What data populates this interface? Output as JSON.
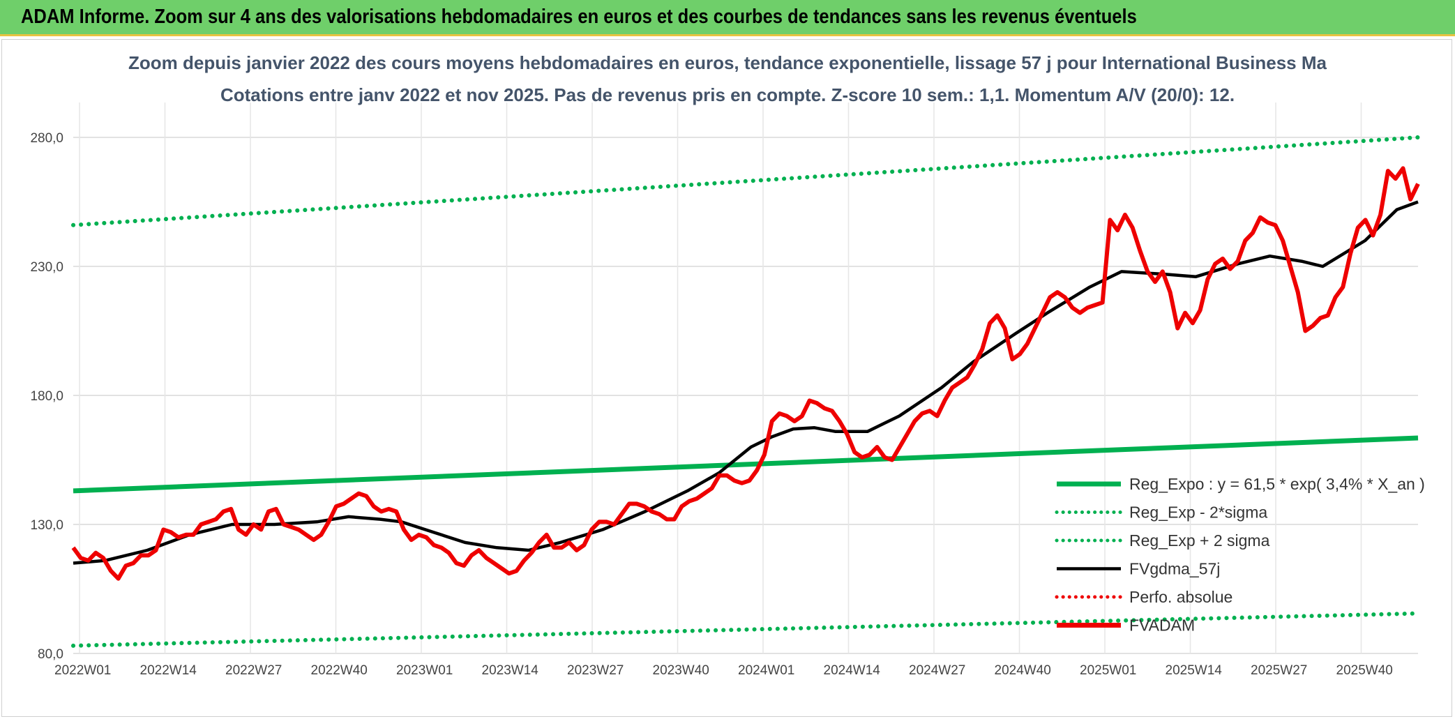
{
  "banner": {
    "title": "ADAM Informe. Zoom sur 4 ans des valorisations hebdomadaires en euros et des courbes de tendances sans les revenus éventuels"
  },
  "colors": {
    "banner": "#6fcf6a",
    "regline": "#00b050",
    "sigma": "#00b050",
    "mma": "#000000",
    "price": "#ee0000",
    "perfo": "#ee0000",
    "grid": "#d9d9d9"
  },
  "chart_data": {
    "type": "line",
    "title": "Zoom depuis janvier 2022 des cours moyens hebdomadaires en euros, tendance exponentielle, lissage 57 j pour International Business Ma",
    "subtitle": "Cotations entre janv 2022 et nov 2025. Pas de revenus pris en compte. Z-score 10 sem.: 1,1. Momentum A/V (20/0): 12.",
    "ylim": [
      80,
      280
    ],
    "yticks": [
      "80,0",
      "130,0",
      "180,0",
      "230,0",
      "280,0"
    ],
    "yticks_values": [
      80,
      130,
      180,
      230,
      280
    ],
    "xticks": [
      "2022W01",
      "2022W14",
      "2022W27",
      "2022W40",
      "2023W01",
      "2023W14",
      "2023W27",
      "2023W40",
      "2024W01",
      "2024W14",
      "2024W27",
      "2024W40",
      "2025W01",
      "2025W14",
      "2025W27",
      "2025W40"
    ],
    "x_weeks_total": 206,
    "legend": [
      {
        "key": "regline",
        "label": "Reg_Expo : y = 61,5 * exp( 3,4% *  X_an )",
        "style": "solid-thick",
        "color": "#00b050"
      },
      {
        "key": "lower",
        "label": "Reg_Exp - 2*sigma",
        "style": "dotted",
        "color": "#00b050"
      },
      {
        "key": "upper",
        "label": "Reg_Exp + 2 sigma",
        "style": "dotted",
        "color": "#00b050"
      },
      {
        "key": "mma",
        "label": "FVgdma_57j",
        "style": "solid",
        "color": "#000000"
      },
      {
        "key": "perfo",
        "label": "Perfo. absolue",
        "style": "dotted",
        "color": "#ee0000"
      },
      {
        "key": "price",
        "label": "FVADAM",
        "style": "solid-thick",
        "color": "#ee0000"
      }
    ],
    "series": [
      {
        "name": "Reg_Expo",
        "points": [
          [
            0,
            143.0
          ],
          [
            206,
            163.5
          ]
        ]
      },
      {
        "name": "Reg_Exp - 2*sigma",
        "points": [
          [
            0,
            83.0
          ],
          [
            206,
            95.5
          ]
        ]
      },
      {
        "name": "Reg_Exp + 2 sigma",
        "points": [
          [
            0,
            246.0
          ],
          [
            206,
            280.0
          ]
        ]
      },
      {
        "name": "FVgdma_57j",
        "points": [
          [
            0,
            115
          ],
          [
            6,
            116
          ],
          [
            14,
            120
          ],
          [
            22,
            126
          ],
          [
            30,
            130
          ],
          [
            38,
            130
          ],
          [
            46,
            131
          ],
          [
            52,
            133
          ],
          [
            58,
            132
          ],
          [
            62,
            131
          ],
          [
            68,
            127
          ],
          [
            74,
            123
          ],
          [
            80,
            121
          ],
          [
            86,
            120
          ],
          [
            92,
            123
          ],
          [
            100,
            128
          ],
          [
            108,
            135
          ],
          [
            116,
            143
          ],
          [
            122,
            150
          ],
          [
            128,
            160
          ],
          [
            132,
            164
          ],
          [
            136,
            167
          ],
          [
            140,
            167.5
          ],
          [
            144,
            166
          ],
          [
            150,
            166
          ],
          [
            156,
            172
          ],
          [
            164,
            183
          ],
          [
            170,
            193
          ],
          [
            178,
            204
          ],
          [
            184,
            212
          ],
          [
            192,
            222
          ],
          [
            198,
            228
          ],
          [
            206,
            227
          ],
          [
            212,
            226
          ],
          [
            220,
            231
          ],
          [
            226,
            234
          ],
          [
            232,
            232
          ],
          [
            236,
            230
          ],
          [
            244,
            240
          ],
          [
            250,
            252
          ],
          [
            254,
            255
          ]
        ]
      },
      {
        "name": "FVADAM",
        "points": [
          [
            0,
            121
          ],
          [
            2,
            117
          ],
          [
            4,
            116
          ],
          [
            6,
            119
          ],
          [
            8,
            117
          ],
          [
            10,
            112
          ],
          [
            12,
            109
          ],
          [
            14,
            114
          ],
          [
            16,
            115
          ],
          [
            18,
            118
          ],
          [
            20,
            118
          ],
          [
            22,
            120
          ],
          [
            24,
            128
          ],
          [
            26,
            127
          ],
          [
            28,
            125
          ],
          [
            30,
            126
          ],
          [
            32,
            126
          ],
          [
            34,
            130
          ],
          [
            36,
            131
          ],
          [
            38,
            132
          ],
          [
            40,
            135
          ],
          [
            42,
            136
          ],
          [
            44,
            128
          ],
          [
            46,
            126
          ],
          [
            48,
            130
          ],
          [
            50,
            128
          ],
          [
            52,
            135
          ],
          [
            54,
            136
          ],
          [
            56,
            130
          ],
          [
            58,
            129
          ],
          [
            60,
            128
          ],
          [
            62,
            126
          ],
          [
            64,
            124
          ],
          [
            66,
            126
          ],
          [
            68,
            131
          ],
          [
            70,
            137
          ],
          [
            72,
            138
          ],
          [
            74,
            140
          ],
          [
            76,
            142
          ],
          [
            78,
            141
          ],
          [
            80,
            137
          ],
          [
            82,
            135
          ],
          [
            84,
            136
          ],
          [
            86,
            135
          ],
          [
            88,
            128
          ],
          [
            90,
            124
          ],
          [
            92,
            126
          ],
          [
            94,
            125
          ],
          [
            96,
            122
          ],
          [
            98,
            121
          ],
          [
            100,
            119
          ],
          [
            102,
            115
          ],
          [
            104,
            114
          ],
          [
            106,
            118
          ],
          [
            108,
            120
          ],
          [
            110,
            117
          ],
          [
            112,
            115
          ],
          [
            114,
            113
          ],
          [
            116,
            111
          ],
          [
            118,
            112
          ],
          [
            120,
            116
          ],
          [
            122,
            119
          ],
          [
            124,
            123
          ],
          [
            126,
            126
          ],
          [
            128,
            121
          ],
          [
            130,
            121
          ],
          [
            132,
            123
          ],
          [
            134,
            120
          ],
          [
            136,
            122
          ],
          [
            138,
            128
          ],
          [
            140,
            131
          ],
          [
            142,
            131
          ],
          [
            144,
            130
          ],
          [
            146,
            134
          ],
          [
            148,
            138
          ],
          [
            150,
            138
          ],
          [
            152,
            137
          ],
          [
            154,
            135
          ],
          [
            156,
            134
          ],
          [
            158,
            132
          ],
          [
            160,
            132
          ],
          [
            162,
            137
          ],
          [
            164,
            139
          ],
          [
            166,
            140
          ],
          [
            168,
            142
          ],
          [
            170,
            144
          ],
          [
            172,
            149
          ],
          [
            174,
            149
          ],
          [
            176,
            147
          ],
          [
            178,
            146
          ],
          [
            180,
            147
          ],
          [
            182,
            151
          ],
          [
            184,
            157
          ],
          [
            186,
            170
          ],
          [
            188,
            173
          ],
          [
            190,
            172
          ],
          [
            192,
            170
          ],
          [
            194,
            172
          ],
          [
            196,
            178
          ],
          [
            198,
            177
          ],
          [
            200,
            175
          ],
          [
            202,
            174
          ],
          [
            204,
            170
          ],
          [
            206,
            165
          ],
          [
            208,
            158
          ],
          [
            210,
            156
          ],
          [
            212,
            157
          ],
          [
            214,
            160
          ],
          [
            216,
            156
          ],
          [
            218,
            155
          ],
          [
            220,
            160
          ],
          [
            222,
            165
          ],
          [
            224,
            170
          ],
          [
            226,
            173
          ],
          [
            228,
            174
          ],
          [
            230,
            172
          ],
          [
            232,
            178
          ],
          [
            234,
            183
          ],
          [
            236,
            185
          ],
          [
            238,
            187
          ],
          [
            240,
            192
          ],
          [
            242,
            198
          ],
          [
            244,
            208
          ],
          [
            246,
            211
          ],
          [
            248,
            206
          ],
          [
            250,
            194
          ],
          [
            252,
            196
          ],
          [
            254,
            200
          ],
          [
            256,
            206
          ],
          [
            258,
            212
          ],
          [
            260,
            218
          ],
          [
            262,
            220
          ],
          [
            264,
            218
          ],
          [
            266,
            214
          ],
          [
            268,
            212
          ],
          [
            270,
            214
          ],
          [
            272,
            215
          ],
          [
            274,
            216
          ],
          [
            276,
            248
          ],
          [
            278,
            244
          ],
          [
            280,
            250
          ],
          [
            282,
            245
          ],
          [
            284,
            236
          ],
          [
            286,
            228
          ],
          [
            288,
            224
          ],
          [
            290,
            228
          ],
          [
            292,
            220
          ],
          [
            294,
            206
          ],
          [
            296,
            212
          ],
          [
            298,
            208
          ],
          [
            300,
            213
          ],
          [
            302,
            225
          ],
          [
            304,
            231
          ],
          [
            306,
            233
          ],
          [
            308,
            229
          ],
          [
            310,
            232
          ],
          [
            312,
            240
          ],
          [
            314,
            243
          ],
          [
            316,
            249
          ],
          [
            318,
            247
          ],
          [
            320,
            246
          ],
          [
            322,
            240
          ],
          [
            324,
            230
          ],
          [
            326,
            220
          ],
          [
            328,
            205
          ],
          [
            330,
            207
          ],
          [
            332,
            210
          ],
          [
            334,
            211
          ],
          [
            336,
            218
          ],
          [
            338,
            222
          ],
          [
            340,
            235
          ],
          [
            342,
            245
          ],
          [
            344,
            248
          ],
          [
            346,
            242
          ],
          [
            348,
            250
          ],
          [
            350,
            267
          ],
          [
            352,
            264
          ],
          [
            354,
            268
          ],
          [
            356,
            256
          ],
          [
            358,
            262
          ]
        ]
      }
    ]
  }
}
